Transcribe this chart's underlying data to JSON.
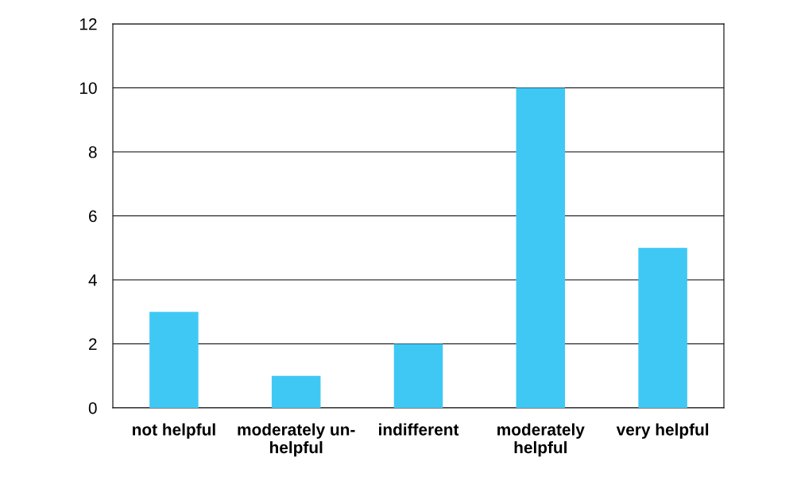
{
  "chart_data": {
    "type": "bar",
    "categories": [
      "not helpful",
      "moderately un-\nhelpful",
      "indifferent",
      "moderately\nhelpful",
      "very helpful"
    ],
    "values": [
      3,
      1,
      2,
      10,
      5
    ],
    "color": "#40c8f4",
    "ylim": [
      0,
      12
    ],
    "yticks": [
      0,
      2,
      4,
      6,
      8,
      10,
      12
    ],
    "grid": "y"
  }
}
